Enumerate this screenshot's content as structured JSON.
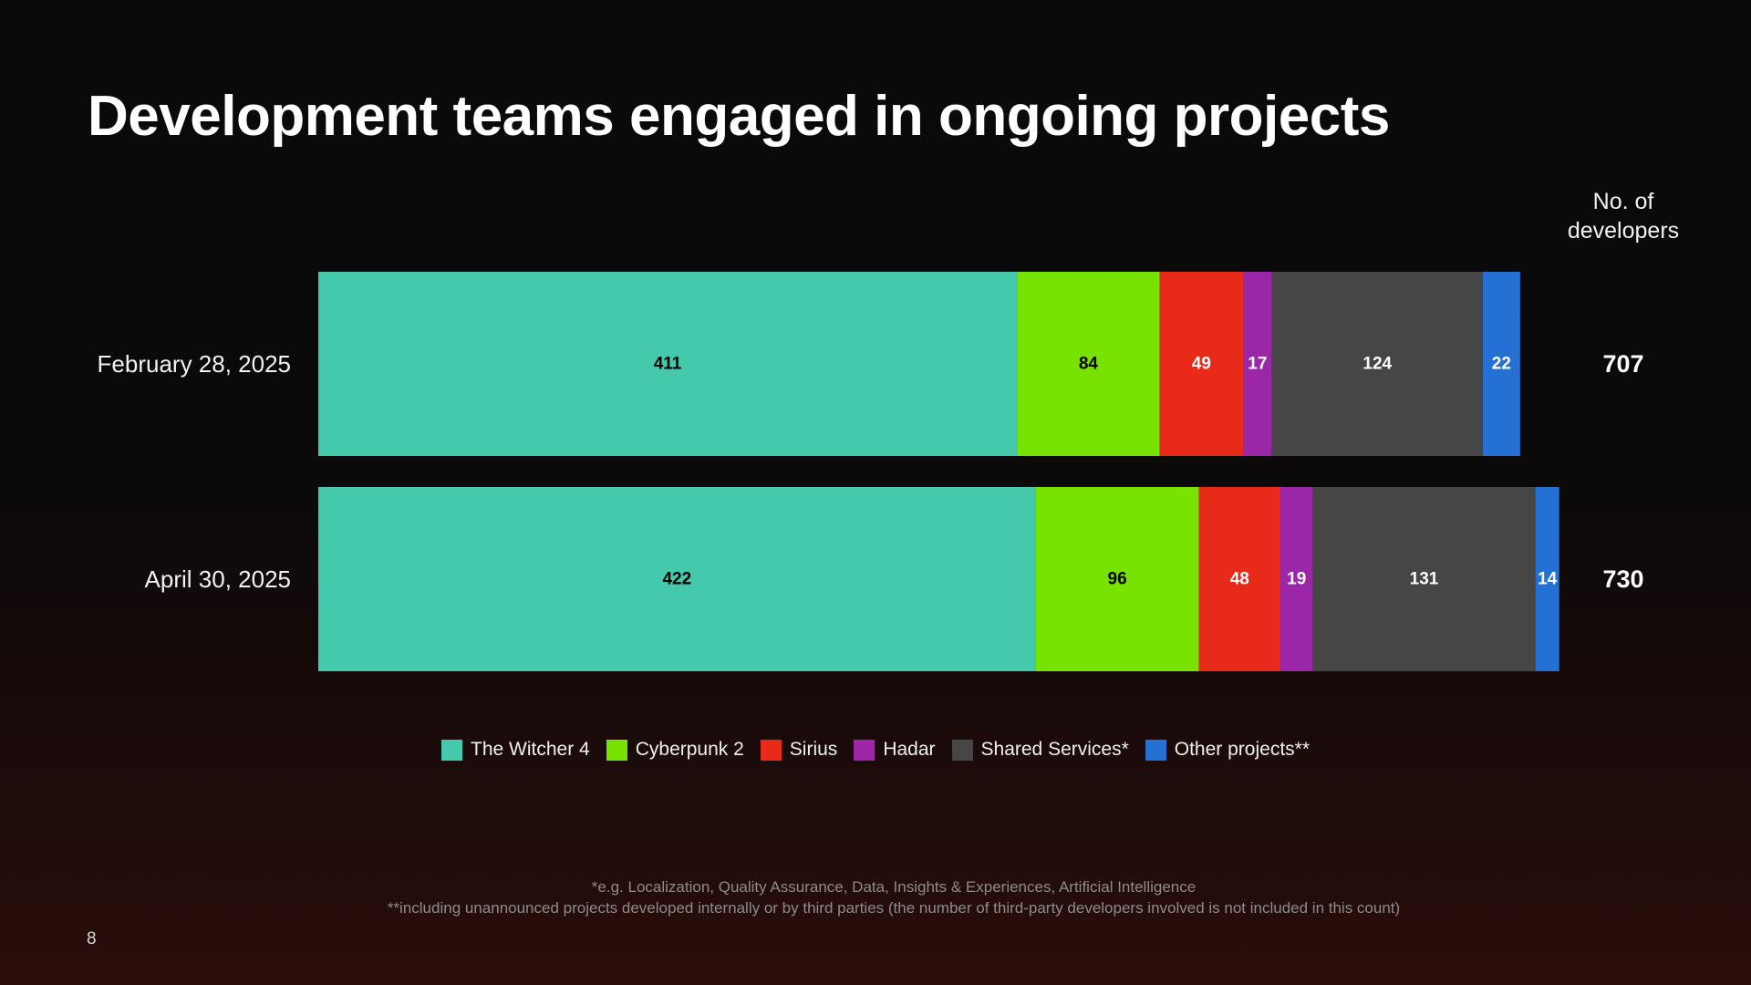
{
  "title": "Development teams engaged in ongoing projects",
  "total_header": [
    "No. of",
    "developers"
  ],
  "footnotes": [
    "*e.g. Localization, Quality Assurance, Data, Insights & Experiences, Artificial Intelligence",
    "**including unannounced projects developed internally or by third parties (the number of third-party developers involved is not included in this count)"
  ],
  "page_number": "8",
  "chart_data": {
    "type": "bar",
    "orientation": "horizontal",
    "stacked": true,
    "categories": [
      "February 28, 2025",
      "April 30, 2025"
    ],
    "series": [
      {
        "name": "The Witcher 4",
        "color": "#44c9ad",
        "label_color": "#000000",
        "values": [
          411,
          422
        ]
      },
      {
        "name": "Cyberpunk 2",
        "color": "#78e303",
        "label_color": "#000000",
        "values": [
          84,
          96
        ]
      },
      {
        "name": "Sirius",
        "color": "#e82b18",
        "label_color": "#ffffff",
        "values": [
          49,
          48
        ]
      },
      {
        "name": "Hadar",
        "color": "#9b26a7",
        "label_color": "#ffffff",
        "values": [
          17,
          19
        ]
      },
      {
        "name": "Shared Services*",
        "color": "#464646",
        "label_color": "#ffffff",
        "values": [
          124,
          131
        ]
      },
      {
        "name": "Other projects**",
        "color": "#2470d3",
        "label_color": "#ffffff",
        "values": [
          22,
          14
        ]
      }
    ],
    "totals": [
      "707",
      "730"
    ],
    "legend": "bottom-center",
    "grid": false
  }
}
